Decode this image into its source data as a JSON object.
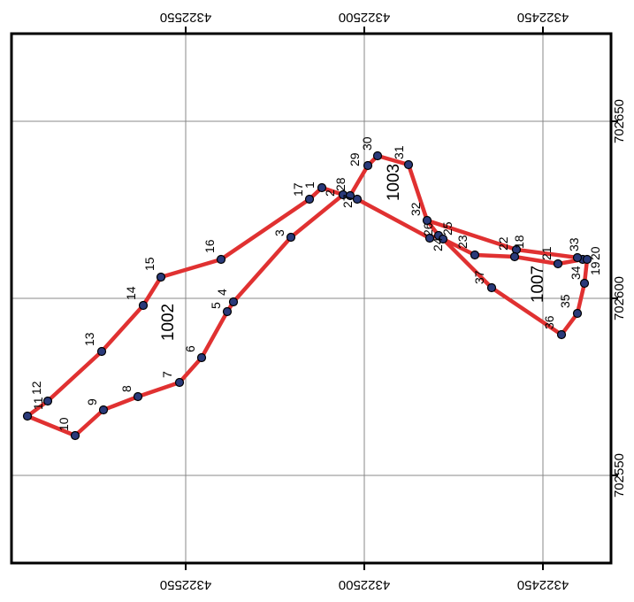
{
  "map": {
    "x_ticks": [
      "4322550",
      "4322500",
      "4322450"
    ],
    "y_ticks": [
      "702650",
      "702600",
      "702550"
    ],
    "x_tick_values": [
      4322550,
      4322500,
      4322450
    ],
    "y_tick_values": [
      702650,
      702600,
      702550
    ],
    "polygons": [
      {
        "label": "1002"
      },
      {
        "label": "1003"
      },
      {
        "label": "1007"
      }
    ],
    "point_labels": [
      "1",
      "2",
      "3",
      "4",
      "5",
      "6",
      "7",
      "8",
      "9",
      "10",
      "11",
      "12",
      "13",
      "14",
      "15",
      "16",
      "17",
      "18",
      "19",
      "20",
      "21",
      "22",
      "23",
      "24",
      "25",
      "26",
      "27",
      "28",
      "29",
      "30",
      "31",
      "32",
      "33",
      "34",
      "35",
      "36",
      "37"
    ],
    "colors": {
      "route": "#e03131",
      "vertex": "#2a3a7a",
      "grid": "#888888",
      "frame": "#000000"
    }
  }
}
